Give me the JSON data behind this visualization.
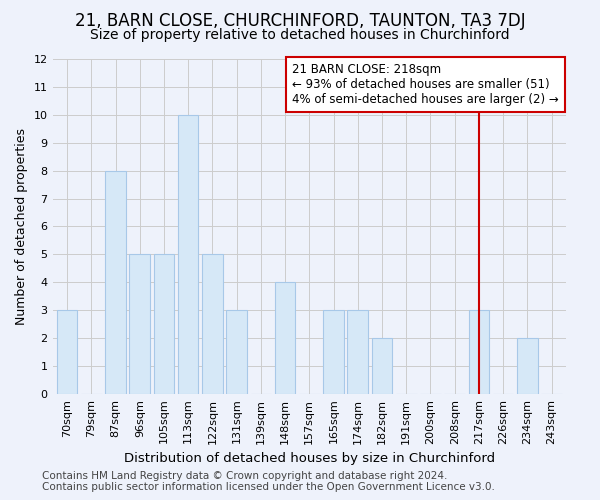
{
  "title": "21, BARN CLOSE, CHURCHINFORD, TAUNTON, TA3 7DJ",
  "subtitle": "Size of property relative to detached houses in Churchinford",
  "xlabel": "Distribution of detached houses by size in Churchinford",
  "ylabel": "Number of detached properties",
  "categories": [
    "70sqm",
    "79sqm",
    "87sqm",
    "96sqm",
    "105sqm",
    "113sqm",
    "122sqm",
    "131sqm",
    "139sqm",
    "148sqm",
    "157sqm",
    "165sqm",
    "174sqm",
    "182sqm",
    "191sqm",
    "200sqm",
    "208sqm",
    "217sqm",
    "226sqm",
    "234sqm",
    "243sqm"
  ],
  "values": [
    3,
    0,
    8,
    5,
    5,
    10,
    5,
    3,
    0,
    4,
    0,
    3,
    3,
    2,
    0,
    0,
    0,
    3,
    0,
    2,
    0
  ],
  "bar_color": "#d6e8f7",
  "bar_edge_color": "#a8c8e8",
  "annotation_text": "21 BARN CLOSE: 218sqm\n← 93% of detached houses are smaller (51)\n4% of semi-detached houses are larger (2) →",
  "annotation_box_facecolor": "#ffffff",
  "annotation_box_edgecolor": "#cc0000",
  "vline_x_index": 17,
  "vline_color": "#cc0000",
  "ylim": [
    0,
    12
  ],
  "yticks": [
    0,
    1,
    2,
    3,
    4,
    5,
    6,
    7,
    8,
    9,
    10,
    11,
    12
  ],
  "grid_color": "#cccccc",
  "background_color": "#eef2fb",
  "plot_bg_color": "#eef2fb",
  "footer": "Contains HM Land Registry data © Crown copyright and database right 2024.\nContains public sector information licensed under the Open Government Licence v3.0.",
  "title_fontsize": 12,
  "subtitle_fontsize": 10,
  "xlabel_fontsize": 9.5,
  "ylabel_fontsize": 9,
  "tick_fontsize": 8,
  "footer_fontsize": 7.5,
  "annotation_fontsize": 8.5
}
